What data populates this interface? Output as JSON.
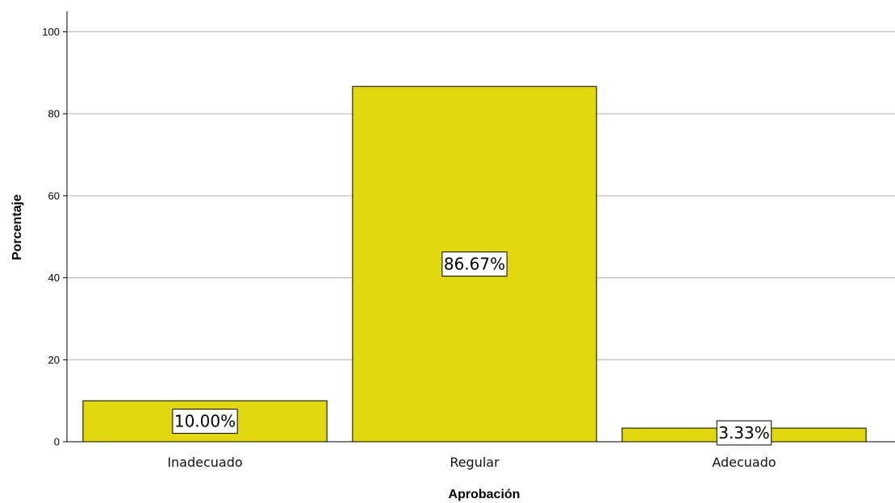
{
  "chart_data": {
    "type": "bar",
    "title": "",
    "xlabel": "Aprobación",
    "ylabel": "Porcentaje",
    "categories": [
      "Inadecuado",
      "Regular",
      "Adecuado"
    ],
    "values": [
      10.0,
      86.67,
      3.33
    ],
    "data_labels": [
      "10.00%",
      "86.67%",
      "3.33%"
    ],
    "ylim": [
      0,
      105
    ],
    "yticks": [
      0,
      20,
      40,
      60,
      80,
      100
    ],
    "ytick_labels": [
      "0",
      "20",
      "40",
      "60",
      "80",
      "100"
    ],
    "grid": "horizontal",
    "legend": "none",
    "bar_color": "#E2D70E",
    "bar_edge_color": "#000000",
    "grid_color": "#B0B0B0"
  }
}
